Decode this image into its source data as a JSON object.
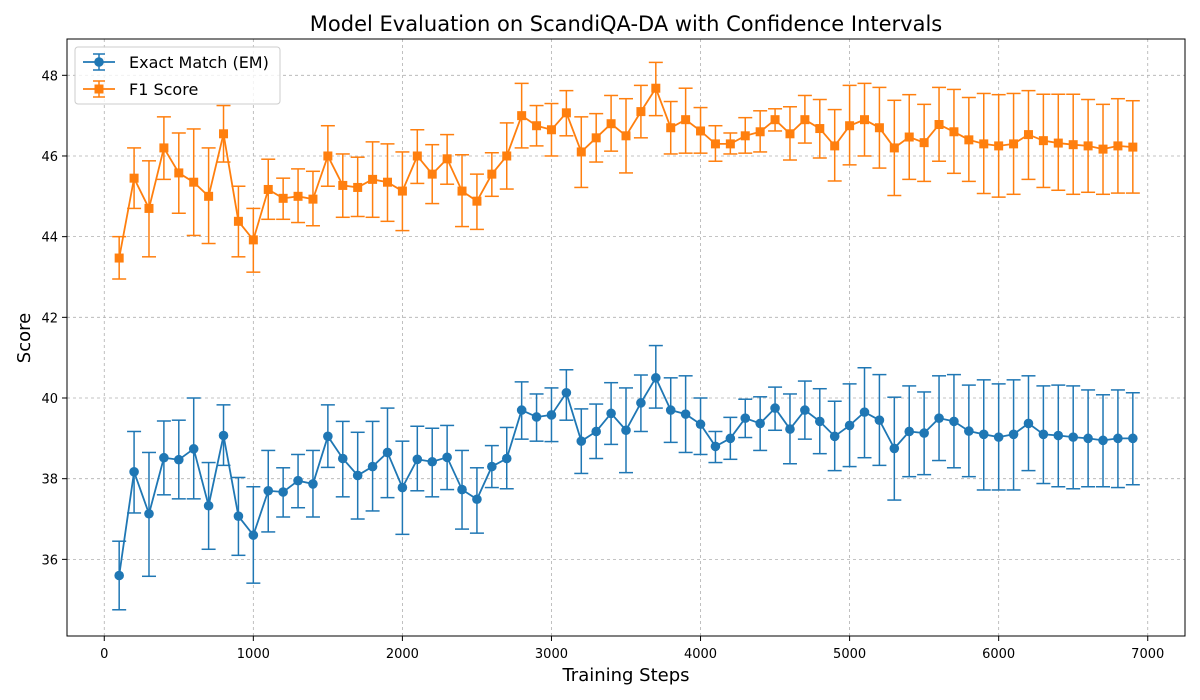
{
  "chart_data": {
    "type": "line",
    "title": "Model Evaluation on ScandiQA-DA with Confidence Intervals",
    "xlabel": "Training Steps",
    "ylabel": "Score",
    "xlim": [
      -250,
      7250
    ],
    "ylim": [
      34.1,
      48.9
    ],
    "x_ticks": [
      0,
      1000,
      2000,
      3000,
      4000,
      5000,
      6000,
      7000
    ],
    "y_ticks": [
      36,
      38,
      40,
      42,
      44,
      46,
      48
    ],
    "grid": true,
    "legend_position": "top-left",
    "x": [
      100,
      200,
      300,
      400,
      500,
      600,
      700,
      800,
      900,
      1000,
      1100,
      1200,
      1300,
      1400,
      1500,
      1600,
      1700,
      1800,
      1900,
      2000,
      2100,
      2200,
      2300,
      2400,
      2500,
      2600,
      2700,
      2800,
      2900,
      3000,
      3100,
      3200,
      3300,
      3400,
      3500,
      3600,
      3700,
      3800,
      3900,
      4000,
      4100,
      4200,
      4300,
      4400,
      4500,
      4600,
      4700,
      4800,
      4900,
      5000,
      5100,
      5200,
      5300,
      5400,
      5500,
      5600,
      5700,
      5800,
      5900,
      6000,
      6100,
      6200,
      6300,
      6400,
      6500,
      6600,
      6700,
      6800,
      6900
    ],
    "series": [
      {
        "name": "Exact Match (EM)",
        "color": "#1f77b4",
        "marker": "circle",
        "values": [
          35.6,
          38.17,
          37.13,
          38.52,
          38.47,
          38.74,
          37.33,
          39.07,
          37.07,
          36.6,
          37.7,
          37.67,
          37.95,
          37.87,
          39.05,
          38.5,
          38.08,
          38.3,
          38.65,
          37.78,
          38.48,
          38.42,
          38.53,
          37.73,
          37.49,
          38.3,
          38.5,
          39.7,
          39.53,
          39.58,
          40.13,
          38.93,
          39.17,
          39.62,
          39.2,
          39.88,
          40.5,
          39.7,
          39.6,
          39.35,
          38.8,
          39.0,
          39.5,
          39.37,
          39.75,
          39.23,
          39.7,
          39.42,
          39.05,
          39.32,
          39.65,
          39.45,
          38.75,
          39.17,
          39.13,
          39.5,
          39.42,
          39.18,
          39.1,
          39.03,
          39.1,
          39.37,
          39.1,
          39.07,
          39.03,
          39.0,
          38.95,
          39.0,
          39.0
        ],
        "error_low": [
          34.75,
          37.15,
          35.58,
          37.6,
          37.5,
          37.5,
          36.25,
          38.33,
          36.1,
          35.41,
          36.68,
          37.05,
          37.28,
          37.05,
          38.28,
          37.55,
          37.0,
          37.2,
          37.53,
          36.62,
          37.7,
          37.55,
          37.73,
          36.75,
          36.65,
          37.78,
          37.75,
          38.98,
          38.93,
          38.92,
          39.45,
          38.13,
          38.5,
          38.85,
          38.15,
          39.17,
          39.75,
          38.9,
          38.65,
          38.6,
          38.4,
          38.48,
          39.02,
          38.7,
          39.2,
          38.37,
          38.98,
          38.62,
          38.2,
          38.3,
          38.52,
          38.33,
          37.47,
          38.05,
          38.1,
          38.45,
          38.27,
          38.05,
          37.72,
          37.72,
          37.72,
          38.2,
          37.88,
          37.8,
          37.75,
          37.8,
          37.8,
          37.78,
          37.85
        ],
        "error_high": [
          36.45,
          39.17,
          38.65,
          39.43,
          39.45,
          40.0,
          38.4,
          39.83,
          38.03,
          37.8,
          38.7,
          38.27,
          38.6,
          38.7,
          39.83,
          39.42,
          39.15,
          39.42,
          39.75,
          38.93,
          39.3,
          39.25,
          39.32,
          38.7,
          38.27,
          38.82,
          39.27,
          40.4,
          40.1,
          40.25,
          40.7,
          39.73,
          39.85,
          40.38,
          40.25,
          40.57,
          41.3,
          40.5,
          40.55,
          40.0,
          39.17,
          39.52,
          39.97,
          40.03,
          40.27,
          40.1,
          40.42,
          40.23,
          39.92,
          40.35,
          40.75,
          40.58,
          40.02,
          40.3,
          40.15,
          40.55,
          40.58,
          40.32,
          40.45,
          40.35,
          40.45,
          40.55,
          40.3,
          40.32,
          40.3,
          40.2,
          40.08,
          40.2,
          40.13
        ]
      },
      {
        "name": "F1 Score",
        "color": "#ff7f0e",
        "marker": "square",
        "values": [
          43.47,
          45.45,
          44.7,
          46.2,
          45.58,
          45.35,
          45.0,
          46.55,
          44.38,
          43.92,
          45.17,
          44.95,
          45.0,
          44.93,
          46.0,
          45.27,
          45.22,
          45.42,
          45.35,
          45.13,
          46.0,
          45.55,
          45.93,
          45.13,
          44.88,
          45.55,
          46.0,
          47.0,
          46.75,
          46.65,
          47.07,
          46.1,
          46.45,
          46.8,
          46.5,
          47.1,
          47.68,
          46.7,
          46.9,
          46.62,
          46.3,
          46.3,
          46.5,
          46.6,
          46.9,
          46.55,
          46.9,
          46.68,
          46.25,
          46.75,
          46.9,
          46.7,
          46.2,
          46.47,
          46.33,
          46.78,
          46.6,
          46.4,
          46.3,
          46.25,
          46.3,
          46.53,
          46.38,
          46.32,
          46.28,
          46.25,
          46.17,
          46.25,
          46.22
        ],
        "error_low": [
          42.95,
          44.7,
          43.5,
          45.42,
          44.58,
          44.03,
          43.83,
          45.85,
          43.5,
          43.12,
          44.43,
          44.43,
          44.35,
          44.27,
          45.25,
          44.48,
          44.5,
          44.48,
          44.38,
          44.15,
          45.32,
          44.82,
          45.3,
          44.25,
          44.18,
          45.0,
          45.18,
          46.2,
          46.25,
          46.0,
          46.5,
          45.22,
          45.85,
          46.12,
          45.58,
          46.45,
          47.0,
          46.05,
          46.07,
          46.07,
          45.87,
          46.05,
          46.07,
          46.1,
          46.62,
          45.9,
          46.32,
          45.95,
          45.38,
          45.78,
          46.0,
          45.7,
          45.02,
          45.42,
          45.37,
          45.87,
          45.57,
          45.37,
          45.07,
          44.98,
          45.05,
          45.42,
          45.22,
          45.15,
          45.05,
          45.1,
          45.05,
          45.08,
          45.08
        ],
        "error_high": [
          44.0,
          46.2,
          45.88,
          46.97,
          46.57,
          46.67,
          46.2,
          47.25,
          45.25,
          44.7,
          45.92,
          45.45,
          45.68,
          45.62,
          46.75,
          46.05,
          45.97,
          46.35,
          46.3,
          46.1,
          46.65,
          46.28,
          46.53,
          46.03,
          45.55,
          46.08,
          46.82,
          47.8,
          47.25,
          47.3,
          47.62,
          46.97,
          47.05,
          47.5,
          47.42,
          47.75,
          48.32,
          47.35,
          47.68,
          47.2,
          46.75,
          46.57,
          46.95,
          47.12,
          47.17,
          47.22,
          47.5,
          47.4,
          47.15,
          47.75,
          47.8,
          47.7,
          47.38,
          47.52,
          47.28,
          47.7,
          47.65,
          47.45,
          47.55,
          47.52,
          47.55,
          47.62,
          47.53,
          47.53,
          47.53,
          47.4,
          47.28,
          47.42,
          47.37
        ]
      }
    ]
  }
}
